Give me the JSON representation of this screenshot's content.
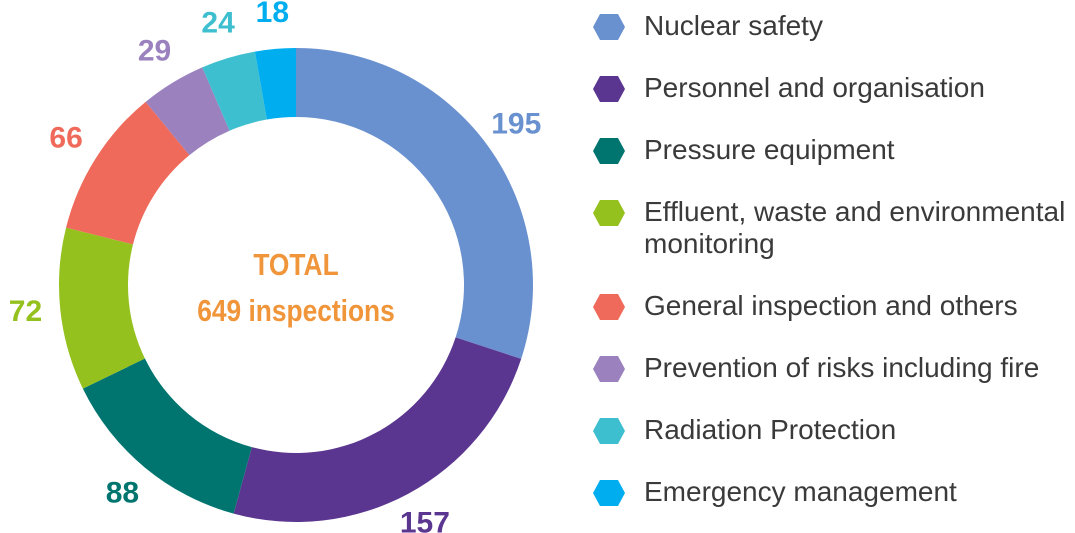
{
  "chart_data": {
    "type": "donut",
    "center_label": [
      "TOTAL",
      "649 inspections"
    ],
    "categories": [
      "Nuclear safety",
      "Personnel and organisation",
      "Pressure equipment",
      "Effluent, waste and environmental monitoring",
      "General inspection and others",
      "Prevention of risks including fire",
      "Radiation Protection",
      "Emergency management"
    ],
    "values": [
      195,
      157,
      88,
      72,
      66,
      29,
      24,
      18
    ],
    "colors": [
      "#6a91cf",
      "#5b3690",
      "#00756f",
      "#95c11f",
      "#ef6a5a",
      "#9b82bf",
      "#3ebfcf",
      "#00aeef"
    ],
    "center_color": "#f0953a"
  }
}
